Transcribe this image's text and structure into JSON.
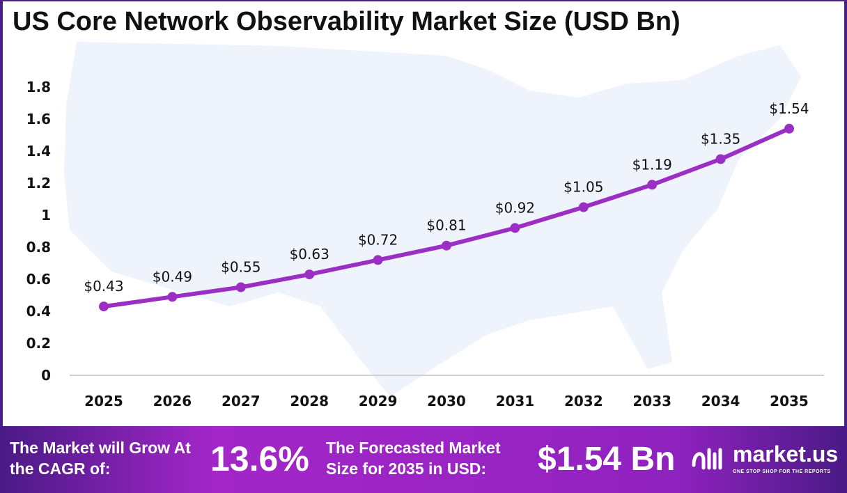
{
  "chart_data": {
    "type": "line",
    "title": "US Core Network Observability Market Size (USD Bn)",
    "categories": [
      "2025",
      "2026",
      "2027",
      "2028",
      "2029",
      "2030",
      "2031",
      "2032",
      "2033",
      "2034",
      "2035"
    ],
    "values": [
      0.43,
      0.49,
      0.55,
      0.63,
      0.72,
      0.81,
      0.92,
      1.05,
      1.19,
      1.35,
      1.54
    ],
    "labels": [
      "$0.43",
      "$0.49",
      "$0.55",
      "$0.63",
      "$0.72",
      "$0.81",
      "$0.92",
      "$1.05",
      "$1.19",
      "$1.35",
      "$1.54"
    ],
    "yticks": [
      "0",
      "0.2",
      "0.4",
      "0.6",
      "0.8",
      "1",
      "1.2",
      "1.4",
      "1.6",
      "1.8"
    ],
    "ylim": [
      0,
      1.8
    ],
    "grid": false,
    "line_color": "#9b2fc4"
  },
  "banner": {
    "cagr_label": "The Market will Grow At the CAGR of:",
    "cagr_value": "13.6%",
    "forecast_label": "The Forecasted Market Size for 2035 in USD:",
    "forecast_value": "$1.54 Bn",
    "brand": "market.us",
    "tagline": "ONE STOP SHOP FOR THE REPORTS"
  }
}
